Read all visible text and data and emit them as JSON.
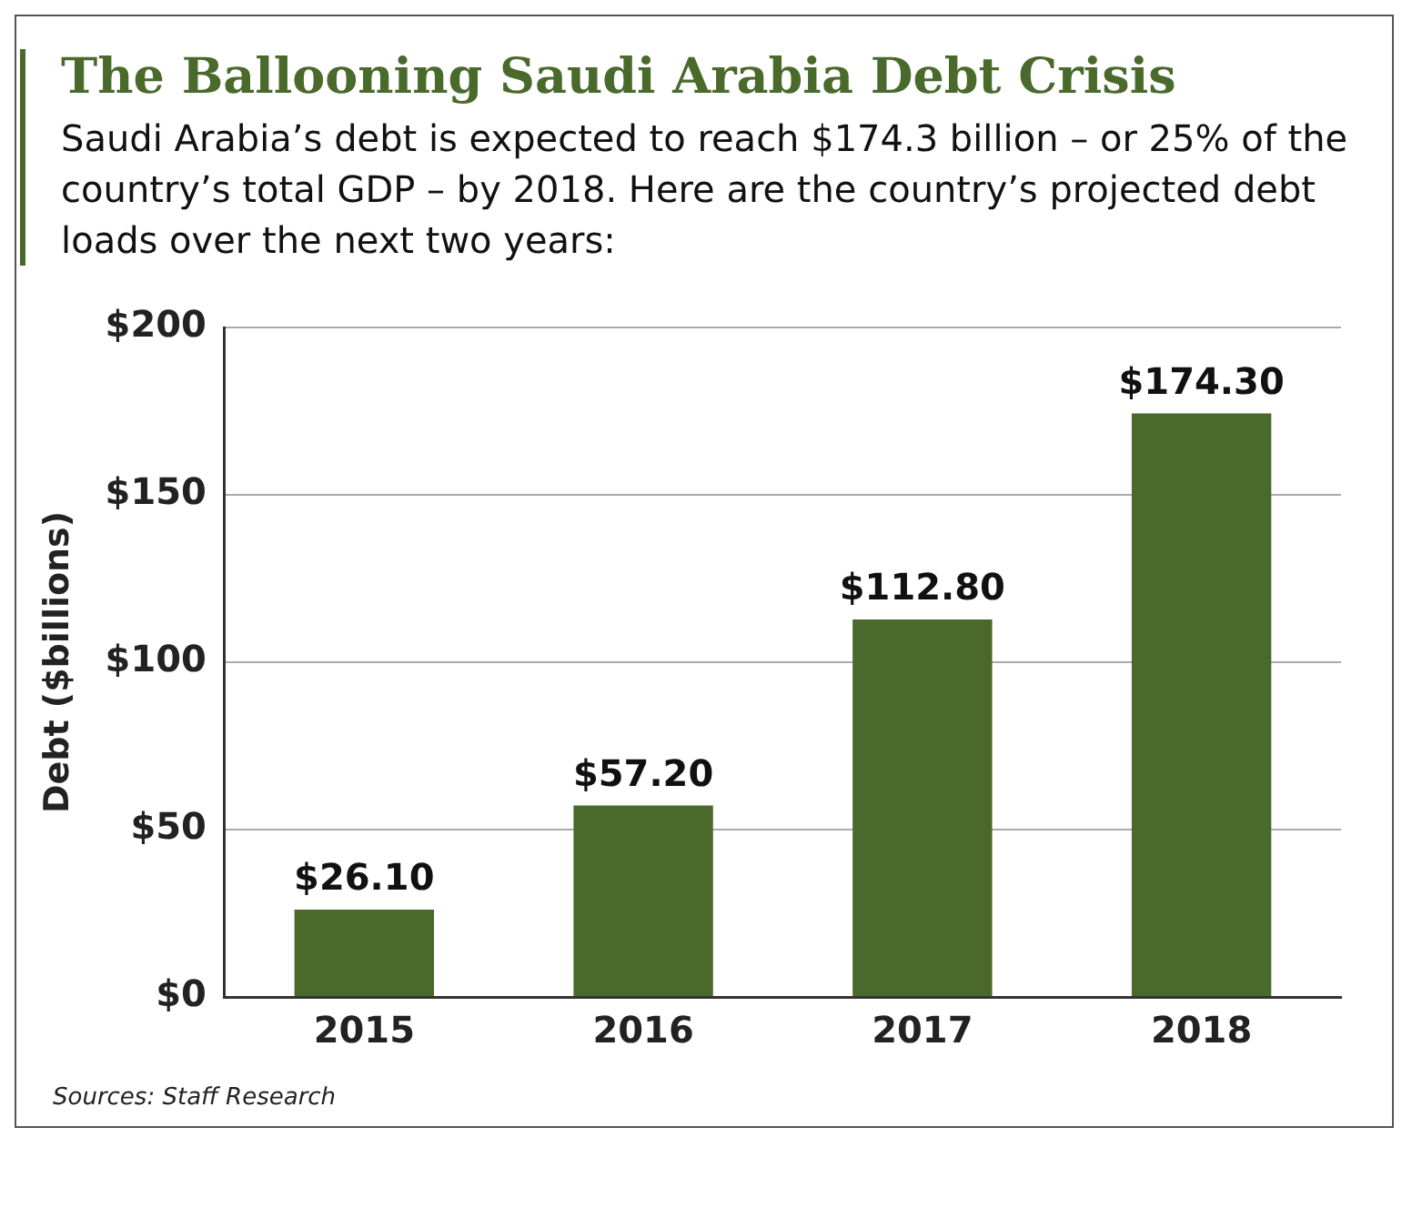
{
  "chart_data": {
    "type": "bar",
    "title": "The Ballooning Saudi Arabia Debt Crisis",
    "subtitle": "Saudi Arabia’s debt is expected to reach $174.3 billion – or 25% of the country’s total GDP – by 2018. Here are the country’s projected debt loads over the next two years:",
    "ylabel": "Debt ($billions)",
    "categories": [
      "2015",
      "2016",
      "2017",
      "2018"
    ],
    "values": [
      26.1,
      57.2,
      112.8,
      174.3
    ],
    "value_labels": [
      "$26.10",
      "$57.20",
      "$112.80",
      "$174.30"
    ],
    "color": "#4a6a2c",
    "ylim": [
      0,
      200
    ],
    "yticks": [
      {
        "value": 0,
        "label": "$0"
      },
      {
        "value": 50,
        "label": "$50"
      },
      {
        "value": 100,
        "label": "$100"
      },
      {
        "value": 150,
        "label": "$150"
      },
      {
        "value": 200,
        "label": "$200"
      }
    ],
    "grid": "y",
    "legend": false,
    "annotations": [
      "Sources: Staff Research"
    ]
  }
}
